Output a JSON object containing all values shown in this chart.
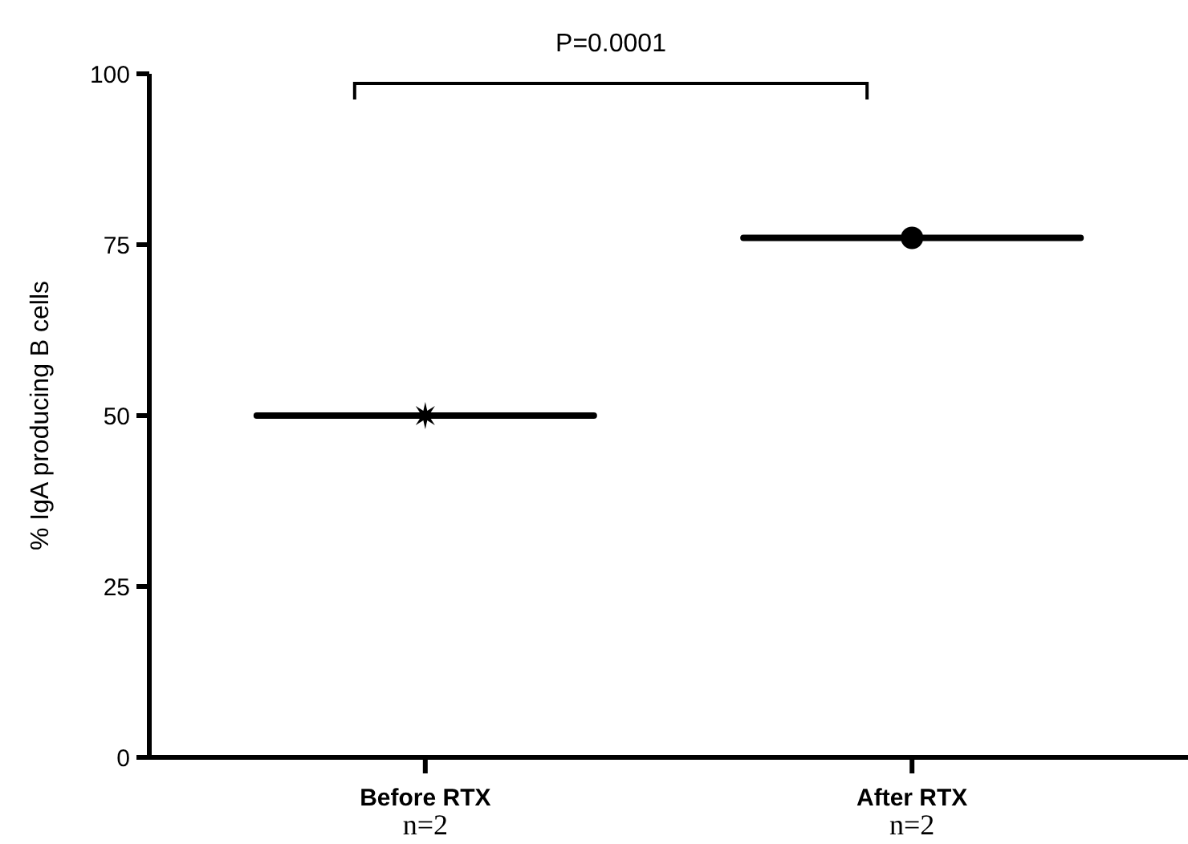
{
  "chart_data": {
    "type": "scatter",
    "ylabel": "% IgA producing B cells",
    "categories": [
      "Before RTX",
      "After RTX"
    ],
    "ylim": [
      0,
      100
    ],
    "yticks": [
      0,
      25,
      50,
      75,
      100
    ],
    "grid": false,
    "series": [
      {
        "type": "box",
        "color": "#000000",
        "boxes": [
          {
            "low": 50,
            "q1": 50,
            "median": 50,
            "q3": 50,
            "high": 50
          },
          {
            "low": 76,
            "q1": 76,
            "median": 76,
            "q3": 76,
            "high": 76
          }
        ]
      },
      {
        "color": "#000000",
        "marker": "star",
        "values": [
          50,
          null
        ]
      },
      {
        "color": "#000000",
        "marker": "circle",
        "values": [
          null,
          76
        ]
      }
    ],
    "annotations": [
      "P=0.0001",
      "n=2",
      "n=2"
    ]
  }
}
